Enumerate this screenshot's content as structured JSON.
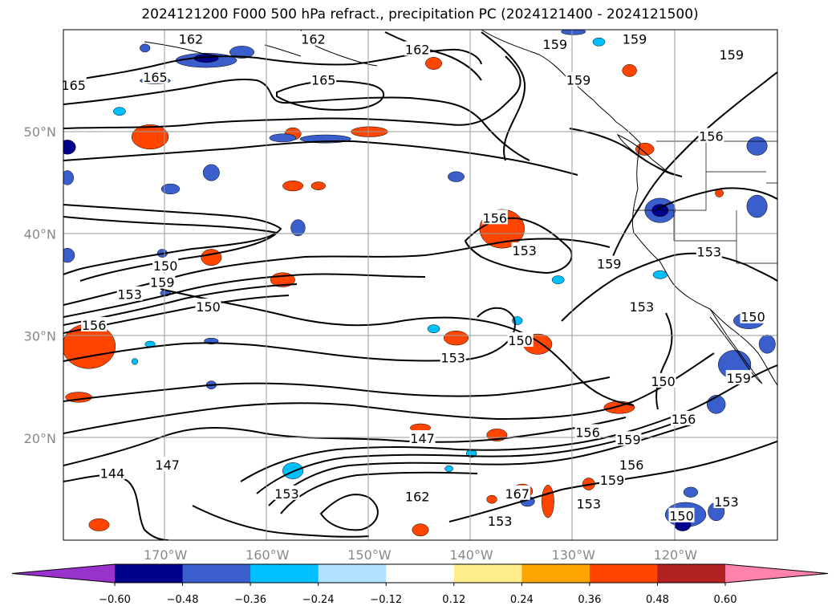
{
  "title": "2024121200 F000 500 hPa refract., precipitation PC (2024121400 - 2024121500)",
  "chart_data": {
    "type": "contour-map",
    "title": "2024121200 F000 500 hPa refract., precipitation PC (2024121400 - 2024121500)",
    "lon_range": [
      -180,
      -110
    ],
    "lat_range": [
      10,
      60
    ],
    "grid": true,
    "lat_ticks": [
      {
        "value": 20,
        "label": "20°N"
      },
      {
        "value": 30,
        "label": "30°N"
      },
      {
        "value": 40,
        "label": "40°N"
      },
      {
        "value": 50,
        "label": "50°N"
      }
    ],
    "lon_ticks": [
      {
        "value": -170,
        "label": "170°W"
      },
      {
        "value": -160,
        "label": "160°W"
      },
      {
        "value": -150,
        "label": "150°W"
      },
      {
        "value": -140,
        "label": "140°W"
      },
      {
        "value": -130,
        "label": "130°W"
      },
      {
        "value": -120,
        "label": "120°W"
      }
    ],
    "contour_labels": [
      {
        "text": "165",
        "lon": -179,
        "lat": 54.5
      },
      {
        "text": "165",
        "lon": -171,
        "lat": 55.3
      },
      {
        "text": "162",
        "lon": -167.5,
        "lat": 59
      },
      {
        "text": "162",
        "lon": -155.5,
        "lat": 59
      },
      {
        "text": "165",
        "lon": -154.5,
        "lat": 55
      },
      {
        "text": "162",
        "lon": -145.3,
        "lat": 58
      },
      {
        "text": "159",
        "lon": -131.8,
        "lat": 58.5
      },
      {
        "text": "159",
        "lon": -129.5,
        "lat": 55
      },
      {
        "text": "159",
        "lon": -124,
        "lat": 59
      },
      {
        "text": "159",
        "lon": -114.5,
        "lat": 57.5
      },
      {
        "text": "156",
        "lon": -116.5,
        "lat": 49.5
      },
      {
        "text": "156",
        "lon": -137.7,
        "lat": 41.5
      },
      {
        "text": "153",
        "lon": -134.8,
        "lat": 38.3
      },
      {
        "text": "153",
        "lon": -116.7,
        "lat": 38.2
      },
      {
        "text": "159",
        "lon": -126.5,
        "lat": 37
      },
      {
        "text": "150",
        "lon": -170,
        "lat": 36.8
      },
      {
        "text": "153",
        "lon": -173.5,
        "lat": 34
      },
      {
        "text": "159",
        "lon": -170.3,
        "lat": 35.2
      },
      {
        "text": "150",
        "lon": -165.8,
        "lat": 32.8
      },
      {
        "text": "156",
        "lon": -177,
        "lat": 31
      },
      {
        "text": "153",
        "lon": -141.8,
        "lat": 27.8
      },
      {
        "text": "150",
        "lon": -135.2,
        "lat": 29.5
      },
      {
        "text": "153",
        "lon": -123.3,
        "lat": 32.8
      },
      {
        "text": "150",
        "lon": -112.4,
        "lat": 31.8
      },
      {
        "text": "150",
        "lon": -121.2,
        "lat": 25.5
      },
      {
        "text": "159",
        "lon": -113.8,
        "lat": 25.8
      },
      {
        "text": "147",
        "lon": -144.8,
        "lat": 19.9
      },
      {
        "text": "156",
        "lon": -128.6,
        "lat": 20.5
      },
      {
        "text": "159",
        "lon": -124.6,
        "lat": 19.8
      },
      {
        "text": "156",
        "lon": -119.2,
        "lat": 21.8
      },
      {
        "text": "156",
        "lon": -124.3,
        "lat": 17.3
      },
      {
        "text": "159",
        "lon": -126.2,
        "lat": 15.8
      },
      {
        "text": "144",
        "lon": -175.2,
        "lat": 16.5
      },
      {
        "text": "147",
        "lon": -169.8,
        "lat": 17.3
      },
      {
        "text": "153",
        "lon": -158.1,
        "lat": 14.5
      },
      {
        "text": "162",
        "lon": -145.3,
        "lat": 14.2
      },
      {
        "text": "167",
        "lon": -135.5,
        "lat": 14.5
      },
      {
        "text": "153",
        "lon": -137.2,
        "lat": 11.8
      },
      {
        "text": "153",
        "lon": -128.5,
        "lat": 13.5
      },
      {
        "text": "150",
        "lon": -119.4,
        "lat": 12.3
      },
      {
        "text": "153",
        "lon": -115,
        "lat": 13.7
      }
    ],
    "colorbar": {
      "extend": "both",
      "levels": [
        -0.6,
        -0.48,
        -0.36,
        -0.24,
        -0.12,
        0.12,
        0.24,
        0.36,
        0.48,
        0.6
      ],
      "tick_labels": [
        "−0.60",
        "−0.48",
        "−0.36",
        "−0.24",
        "−0.12",
        "0.12",
        "0.24",
        "0.36",
        "0.48",
        "0.60"
      ],
      "colors": [
        "#9932cc",
        "#00008b",
        "#3a5fcd",
        "#00bfff",
        "#b0e2ff",
        "#ffffff",
        "#ffec8b",
        "#ffa500",
        "#ff4500",
        "#b22222",
        "#ff82ab"
      ]
    },
    "precip_blobs": [
      {
        "lon": -177.5,
        "lat": 29.0,
        "rx": 1.8,
        "ry": 1.5,
        "c": "#b22222"
      },
      {
        "lon": -177.5,
        "lat": 29.0,
        "rx": 2.6,
        "ry": 2.2,
        "c": "#ff4500"
      },
      {
        "lon": -178.5,
        "lat": 24.0,
        "rx": 1.3,
        "ry": 0.5,
        "c": "#ff4500"
      },
      {
        "lon": -165.5,
        "lat": 37.7,
        "rx": 1.0,
        "ry": 0.8,
        "c": "#ff4500"
      },
      {
        "lon": -158.5,
        "lat": 35.5,
        "rx": 1.2,
        "ry": 0.7,
        "c": "#ff4500"
      },
      {
        "lon": -150.0,
        "lat": 50.0,
        "rx": 1.8,
        "ry": 0.5,
        "c": "#ff4500"
      },
      {
        "lon": -157.5,
        "lat": 49.8,
        "rx": 0.8,
        "ry": 0.6,
        "c": "#ff4500"
      },
      {
        "lon": -171.5,
        "lat": 49.5,
        "rx": 1.2,
        "ry": 0.9,
        "c": "#b22222"
      },
      {
        "lon": -171.5,
        "lat": 49.5,
        "rx": 1.8,
        "ry": 1.2,
        "c": "#ff4500"
      },
      {
        "lon": -157.5,
        "lat": 44.7,
        "rx": 1.0,
        "ry": 0.5,
        "c": "#ff4500"
      },
      {
        "lon": -155.0,
        "lat": 44.7,
        "rx": 0.7,
        "ry": 0.4,
        "c": "#ff4500"
      },
      {
        "lon": -137.0,
        "lat": 40.5,
        "rx": 1.3,
        "ry": 1.0,
        "c": "#b22222"
      },
      {
        "lon": -137.0,
        "lat": 40.5,
        "rx": 2.2,
        "ry": 1.9,
        "c": "#ff4500"
      },
      {
        "lon": -133.5,
        "lat": 29.2,
        "rx": 1.4,
        "ry": 1.0,
        "c": "#ff4500"
      },
      {
        "lon": -141.5,
        "lat": 29.8,
        "rx": 1.2,
        "ry": 0.7,
        "c": "#ff4500"
      },
      {
        "lon": -145.0,
        "lat": 21.0,
        "rx": 1.0,
        "ry": 0.4,
        "c": "#ff4500"
      },
      {
        "lon": -137.5,
        "lat": 20.3,
        "rx": 1.0,
        "ry": 0.6,
        "c": "#ff4500"
      },
      {
        "lon": -125.5,
        "lat": 23.0,
        "rx": 1.5,
        "ry": 0.6,
        "c": "#ff4500"
      },
      {
        "lon": -132.5,
        "lat": 13.8,
        "rx": 0.6,
        "ry": 1.6,
        "c": "#ff4500"
      },
      {
        "lon": -135.0,
        "lat": 14.8,
        "rx": 1.0,
        "ry": 0.7,
        "c": "#ff4500"
      },
      {
        "lon": -145.0,
        "lat": 11.0,
        "rx": 0.8,
        "ry": 0.6,
        "c": "#ff4500"
      },
      {
        "lon": -176.5,
        "lat": 11.5,
        "rx": 1.0,
        "ry": 0.6,
        "c": "#ff4500"
      },
      {
        "lon": -143.7,
        "lat": 56.7,
        "rx": 0.8,
        "ry": 0.6,
        "c": "#ff4500"
      },
      {
        "lon": -124.5,
        "lat": 56.0,
        "rx": 0.7,
        "ry": 0.6,
        "c": "#ff4500"
      },
      {
        "lon": -128.5,
        "lat": 15.5,
        "rx": 0.6,
        "ry": 0.6,
        "c": "#ff4500"
      },
      {
        "lon": -138.0,
        "lat": 14.0,
        "rx": 0.5,
        "ry": 0.4,
        "c": "#ff4500"
      },
      {
        "lon": -123.0,
        "lat": 48.3,
        "rx": 0.9,
        "ry": 0.6,
        "c": "#ff4500"
      },
      {
        "lon": -115.7,
        "lat": 44.0,
        "rx": 0.4,
        "ry": 0.4,
        "c": "#ff4500"
      },
      {
        "lon": -121.5,
        "lat": 42.3,
        "rx": 1.5,
        "ry": 1.2,
        "c": "#3a5fcd"
      },
      {
        "lon": -121.5,
        "lat": 42.3,
        "rx": 0.8,
        "ry": 0.6,
        "c": "#00008b"
      },
      {
        "lon": -112.0,
        "lat": 42.7,
        "rx": 1.0,
        "ry": 1.1,
        "c": "#3a5fcd"
      },
      {
        "lon": -166.0,
        "lat": 57.0,
        "rx": 3.0,
        "ry": 0.7,
        "c": "#3a5fcd"
      },
      {
        "lon": -166.0,
        "lat": 57.2,
        "rx": 1.2,
        "ry": 0.4,
        "c": "#00008b"
      },
      {
        "lon": -154.3,
        "lat": 49.3,
        "rx": 2.5,
        "ry": 0.4,
        "c": "#3a5fcd"
      },
      {
        "lon": -158.5,
        "lat": 49.4,
        "rx": 1.3,
        "ry": 0.4,
        "c": "#3a5fcd"
      },
      {
        "lon": -165.5,
        "lat": 46.0,
        "rx": 0.8,
        "ry": 0.8,
        "c": "#3a5fcd"
      },
      {
        "lon": -169.5,
        "lat": 44.4,
        "rx": 0.9,
        "ry": 0.5,
        "c": "#3a5fcd"
      },
      {
        "lon": -157.0,
        "lat": 40.6,
        "rx": 0.7,
        "ry": 0.8,
        "c": "#3a5fcd"
      },
      {
        "lon": -141.5,
        "lat": 45.6,
        "rx": 0.8,
        "ry": 0.5,
        "c": "#3a5fcd"
      },
      {
        "lon": -179.6,
        "lat": 48.5,
        "rx": 0.8,
        "ry": 0.7,
        "c": "#00008b"
      },
      {
        "lon": -179.6,
        "lat": 45.5,
        "rx": 0.6,
        "ry": 0.7,
        "c": "#3a5fcd"
      },
      {
        "lon": -179.6,
        "lat": 37.9,
        "rx": 0.7,
        "ry": 0.7,
        "c": "#3a5fcd"
      },
      {
        "lon": -162.5,
        "lat": 57.8,
        "rx": 1.2,
        "ry": 0.6,
        "c": "#3a5fcd"
      },
      {
        "lon": -171.0,
        "lat": 55.0,
        "rx": 1.5,
        "ry": 0.3,
        "c": "#3a5fcd"
      },
      {
        "lon": -172.0,
        "lat": 58.2,
        "rx": 0.5,
        "ry": 0.4,
        "c": "#3a5fcd"
      },
      {
        "lon": -130.0,
        "lat": 59.8,
        "rx": 1.2,
        "ry": 0.3,
        "c": "#3a5fcd"
      },
      {
        "lon": -112.0,
        "lat": 48.6,
        "rx": 1.0,
        "ry": 0.9,
        "c": "#3a5fcd"
      },
      {
        "lon": -112.8,
        "lat": 31.5,
        "rx": 1.5,
        "ry": 0.8,
        "c": "#3a5fcd"
      },
      {
        "lon": -111.0,
        "lat": 29.2,
        "rx": 0.8,
        "ry": 0.9,
        "c": "#3a5fcd"
      },
      {
        "lon": -114.5,
        "lat": 27.0,
        "rx": 0.8,
        "ry": 0.8,
        "c": "#00008b"
      },
      {
        "lon": -114.2,
        "lat": 27.2,
        "rx": 1.6,
        "ry": 1.4,
        "c": "#3a5fcd"
      },
      {
        "lon": -116.0,
        "lat": 23.3,
        "rx": 0.9,
        "ry": 0.9,
        "c": "#3a5fcd"
      },
      {
        "lon": -119.0,
        "lat": 12.5,
        "rx": 2.0,
        "ry": 1.2,
        "c": "#3a5fcd"
      },
      {
        "lon": -119.3,
        "lat": 11.5,
        "rx": 0.8,
        "ry": 0.6,
        "c": "#00008b"
      },
      {
        "lon": -116.0,
        "lat": 12.8,
        "rx": 0.8,
        "ry": 0.9,
        "c": "#3a5fcd"
      },
      {
        "lon": -118.5,
        "lat": 14.7,
        "rx": 0.7,
        "ry": 0.5,
        "c": "#3a5fcd"
      },
      {
        "lon": -134.5,
        "lat": 13.8,
        "rx": 0.7,
        "ry": 0.5,
        "c": "#3a5fcd"
      },
      {
        "lon": -170.3,
        "lat": 38.1,
        "rx": 0.5,
        "ry": 0.4,
        "c": "#3a5fcd"
      },
      {
        "lon": -165.5,
        "lat": 25.2,
        "rx": 0.5,
        "ry": 0.4,
        "c": "#3a5fcd"
      },
      {
        "lon": -170.0,
        "lat": 34.2,
        "rx": 0.5,
        "ry": 0.3,
        "c": "#3a5fcd"
      },
      {
        "lon": -165.5,
        "lat": 29.5,
        "rx": 0.7,
        "ry": 0.3,
        "c": "#3a5fcd"
      },
      {
        "lon": -127.5,
        "lat": 58.8,
        "rx": 0.6,
        "ry": 0.4,
        "c": "#00bfff"
      },
      {
        "lon": -131.5,
        "lat": 35.5,
        "rx": 0.6,
        "ry": 0.4,
        "c": "#00bfff"
      },
      {
        "lon": -171.5,
        "lat": 29.2,
        "rx": 0.5,
        "ry": 0.3,
        "c": "#00bfff"
      },
      {
        "lon": -173.0,
        "lat": 27.5,
        "rx": 0.3,
        "ry": 0.3,
        "c": "#00bfff"
      },
      {
        "lon": -157.5,
        "lat": 16.8,
        "rx": 1.0,
        "ry": 0.8,
        "c": "#00bfff"
      },
      {
        "lon": -140.0,
        "lat": 18.5,
        "rx": 0.5,
        "ry": 0.4,
        "c": "#00bfff"
      },
      {
        "lon": -142.2,
        "lat": 17.0,
        "rx": 0.4,
        "ry": 0.3,
        "c": "#00bfff"
      },
      {
        "lon": -174.5,
        "lat": 52.0,
        "rx": 0.6,
        "ry": 0.4,
        "c": "#00bfff"
      },
      {
        "lon": -135.5,
        "lat": 31.5,
        "rx": 0.5,
        "ry": 0.4,
        "c": "#00bfff"
      },
      {
        "lon": -121.5,
        "lat": 36.0,
        "rx": 0.7,
        "ry": 0.4,
        "c": "#00bfff"
      },
      {
        "lon": -143.7,
        "lat": 30.7,
        "rx": 0.6,
        "ry": 0.4,
        "c": "#00bfff"
      }
    ]
  }
}
